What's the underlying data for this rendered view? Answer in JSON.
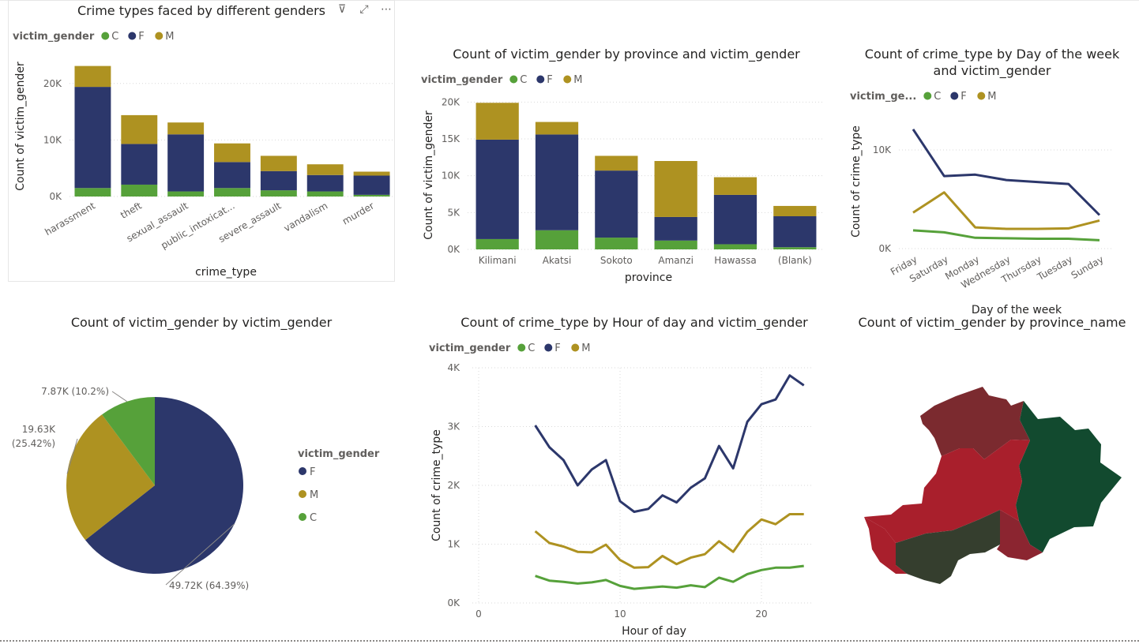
{
  "colors": {
    "C": "#56a13a",
    "F": "#2c376b",
    "M": "#ae9221"
  },
  "header_icons": [
    {
      "name": "filter-icon",
      "glyph": "⊽"
    },
    {
      "name": "focus-mode-icon",
      "glyph": "⤢"
    },
    {
      "name": "more-options-icon",
      "glyph": "⋯"
    }
  ],
  "chart_data": [
    {
      "id": "crime_types",
      "type": "bar",
      "stacked": true,
      "title": "Crime types faced by different genders",
      "legend_title": "victim_gender",
      "xlabel": "crime_type",
      "ylabel": "Count of victim_gender",
      "ylim": [
        0,
        25000
      ],
      "yticks": [
        0,
        10000,
        20000
      ],
      "ytick_labels": [
        "0K",
        "10K",
        "20K"
      ],
      "categories": [
        "harassment",
        "theft",
        "sexual_assault",
        "public_intoxicat...",
        "severe_assault",
        "vandalism",
        "murder"
      ],
      "series": [
        {
          "name": "C",
          "values": [
            1500,
            2100,
            900,
            1500,
            1100,
            900,
            300
          ]
        },
        {
          "name": "F",
          "values": [
            17900,
            7200,
            10100,
            4600,
            3400,
            2900,
            3400
          ]
        },
        {
          "name": "M",
          "values": [
            3700,
            5100,
            2100,
            3300,
            2700,
            1900,
            700
          ]
        }
      ]
    },
    {
      "id": "province",
      "type": "bar",
      "stacked": true,
      "title": "Count of victim_gender by province and victim_gender",
      "legend_title": "victim_gender",
      "xlabel": "province",
      "ylabel": "Count of victim_gender",
      "ylim": [
        0,
        21000
      ],
      "yticks": [
        0,
        5000,
        10000,
        15000,
        20000
      ],
      "ytick_labels": [
        "0K",
        "5K",
        "10K",
        "15K",
        "20K"
      ],
      "categories": [
        "Kilimani",
        "Akatsi",
        "Sokoto",
        "Amanzi",
        "Hawassa",
        "(Blank)"
      ],
      "series": [
        {
          "name": "C",
          "values": [
            1400,
            2600,
            1600,
            1200,
            700,
            300
          ]
        },
        {
          "name": "F",
          "values": [
            13500,
            13000,
            9100,
            3200,
            6700,
            4200
          ]
        },
        {
          "name": "M",
          "values": [
            5000,
            1700,
            2000,
            7600,
            2400,
            1400
          ]
        }
      ]
    },
    {
      "id": "day_of_week",
      "type": "line",
      "title_lines": [
        "Count of crime_type by Day of the week",
        "and victim_gender"
      ],
      "legend_title": "victim_ge...",
      "xlabel": "Day of the week",
      "ylabel": "Count of crime_type",
      "ylim": [
        0,
        14000
      ],
      "yticks": [
        0,
        10000
      ],
      "ytick_labels": [
        "0K",
        "10K"
      ],
      "categories": [
        "Friday",
        "Saturday",
        "Monday",
        "Wednesday",
        "Thursday",
        "Tuesday",
        "Sunday"
      ],
      "series": [
        {
          "name": "C",
          "values": [
            1850,
            1650,
            1100,
            1050,
            1000,
            1000,
            850
          ]
        },
        {
          "name": "F",
          "values": [
            12100,
            7350,
            7500,
            6950,
            6750,
            6550,
            3400
          ]
        },
        {
          "name": "M",
          "values": [
            3650,
            5700,
            2150,
            2000,
            2000,
            2050,
            2850
          ]
        }
      ]
    },
    {
      "id": "gender_pie",
      "type": "pie",
      "title": "Count of victim_gender by victim_gender",
      "legend_title": "victim_gender",
      "legend_order": [
        "F",
        "M",
        "C"
      ],
      "slices": [
        {
          "name": "F",
          "value": 49720,
          "label": "49.72K (64.39%)"
        },
        {
          "name": "M",
          "value": 19630,
          "label_lines": [
            "19.63K",
            "(25.42%)"
          ]
        },
        {
          "name": "C",
          "value": 7870,
          "label": "7.87K (10.2%)"
        }
      ]
    },
    {
      "id": "hour_of_day",
      "type": "line",
      "title": "Count of crime_type by Hour of day and victim_gender",
      "legend_title": "victim_gender",
      "xlabel": "Hour of day",
      "ylabel": "Count of crime_type",
      "xlim": [
        0,
        24
      ],
      "xticks": [
        0,
        10,
        20
      ],
      "ylim": [
        0,
        4000
      ],
      "yticks": [
        0,
        1000,
        2000,
        3000,
        4000
      ],
      "ytick_labels": [
        "0K",
        "1K",
        "2K",
        "3K",
        "4K"
      ],
      "x": [
        4,
        5,
        6,
        7,
        8,
        9,
        10,
        11,
        12,
        13,
        14,
        15,
        16,
        17,
        18,
        19,
        20,
        21,
        22,
        23
      ],
      "series": [
        {
          "name": "F",
          "values": [
            3020,
            2650,
            2430,
            2000,
            2270,
            2430,
            1730,
            1550,
            1600,
            1830,
            1710,
            1960,
            2120,
            2670,
            2290,
            3080,
            3380,
            3460,
            3870,
            3700
          ]
        },
        {
          "name": "M",
          "values": [
            1220,
            1020,
            960,
            870,
            860,
            990,
            730,
            600,
            610,
            800,
            660,
            770,
            830,
            1050,
            870,
            1210,
            1420,
            1340,
            1510,
            1510
          ]
        },
        {
          "name": "C",
          "values": [
            460,
            380,
            360,
            330,
            350,
            390,
            290,
            240,
            260,
            280,
            260,
            300,
            270,
            430,
            360,
            490,
            560,
            600,
            600,
            630
          ]
        }
      ]
    },
    {
      "id": "province_map",
      "type": "map",
      "title": "Count of victim_gender by province_name",
      "regions": [
        {
          "name": "north",
          "color": "#7b2a2f"
        },
        {
          "name": "east",
          "color": "#124a2f"
        },
        {
          "name": "center",
          "color": "#a91f2c"
        },
        {
          "name": "south-west",
          "color": "#353e2e"
        },
        {
          "name": "south",
          "color": "#8b2530"
        }
      ]
    }
  ]
}
